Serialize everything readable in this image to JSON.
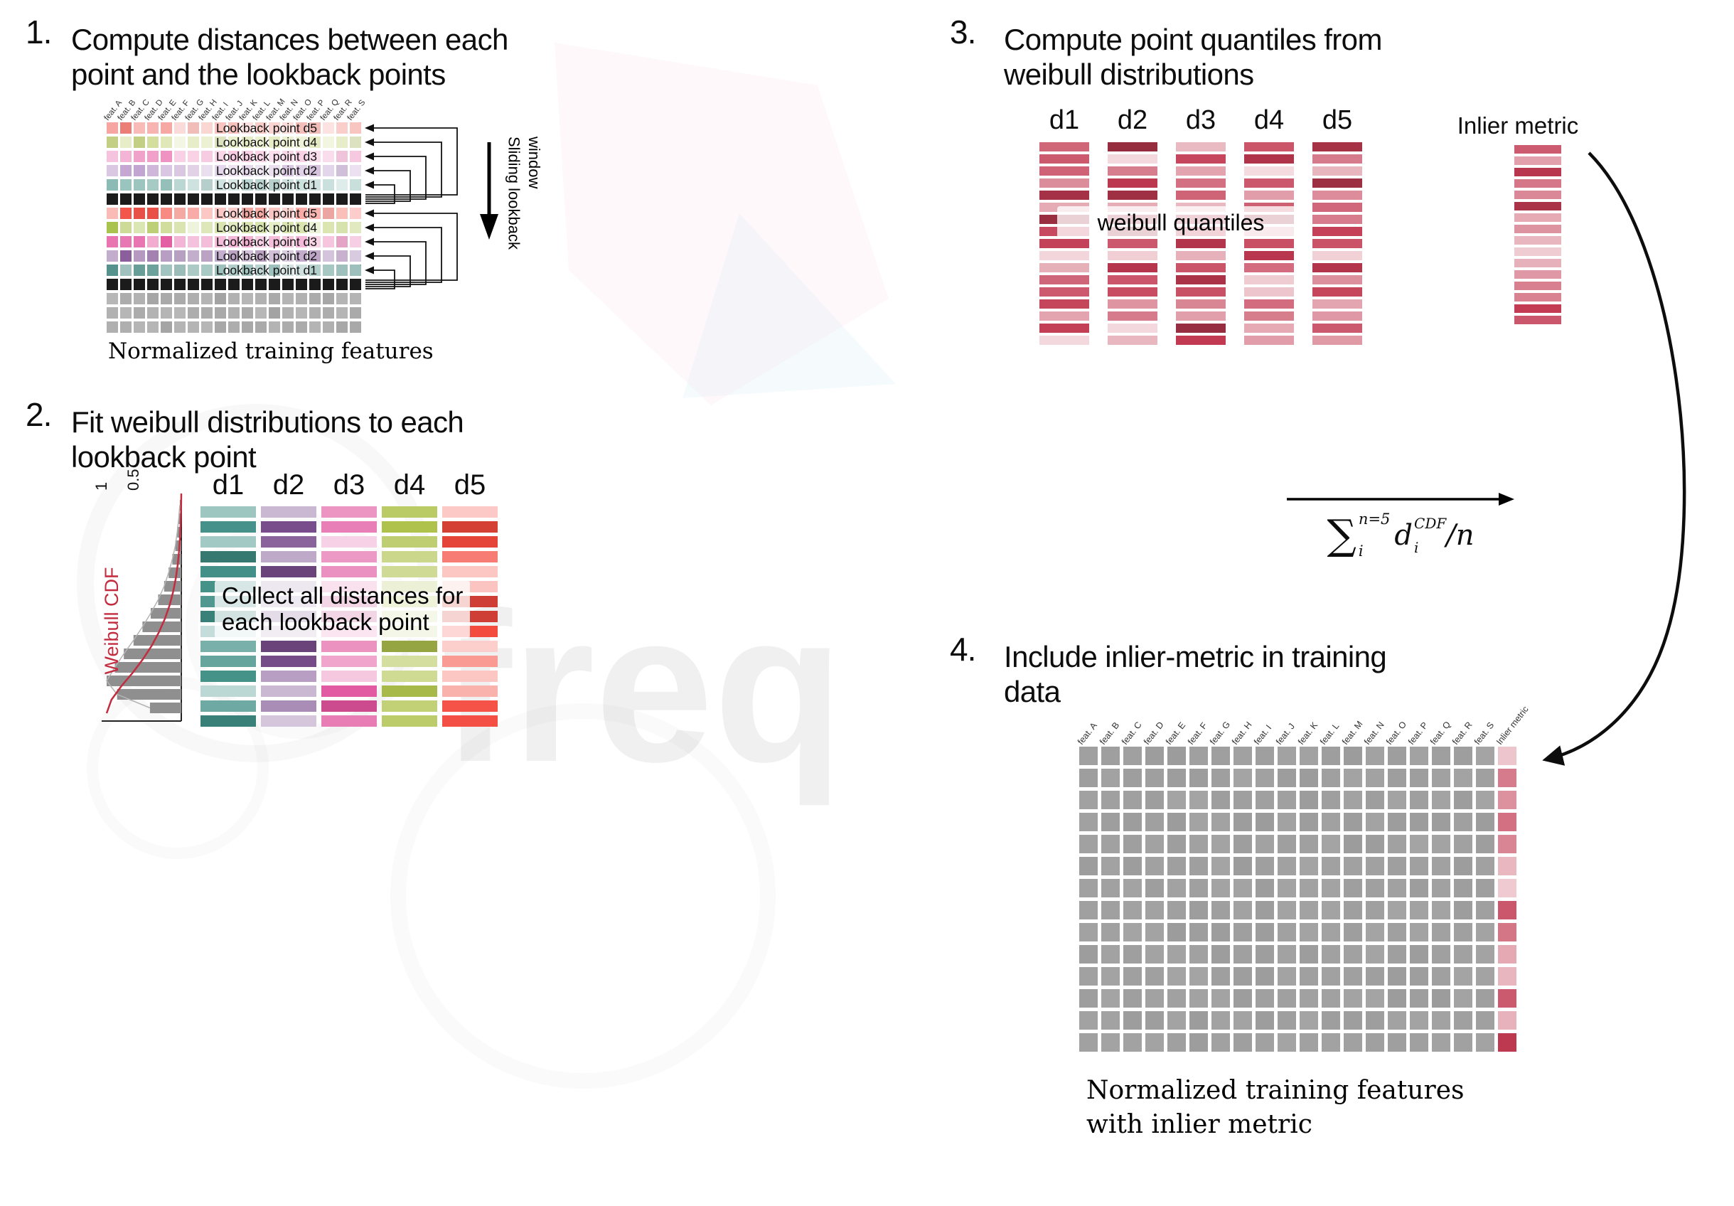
{
  "watermark": {
    "text": "freq"
  },
  "features": [
    "feat. A",
    "feat. B",
    "feat. C",
    "feat. D",
    "feat. E",
    "feat. F",
    "feat. G",
    "feat. H",
    "feat. I",
    "feat. J",
    "feat. K",
    "feat. L",
    "feat. M",
    "feat. N",
    "feat. O",
    "feat. P",
    "feat. Q",
    "feat. R",
    "feat. S"
  ],
  "panel1": {
    "number": "1.",
    "title_lines": [
      "Compute distances between each",
      "point and the lookback points"
    ],
    "lookback_labels": [
      "Lookback point d5",
      "Lookback point d4",
      "Lookback point d3",
      "Lookback point d2",
      "Lookback point d1"
    ],
    "sliding_label": "Sliding lookback window",
    "caption": "Normalized training features",
    "grid": {
      "columns": 19,
      "data_rows_per_group": 5,
      "groups": 2,
      "separator_rows": 2,
      "trailing_gray_rows": 3
    },
    "colors": {
      "group1": {
        "d5": "#f2837b",
        "d4": "#ccd98b",
        "d3": "#ef93c3",
        "d2": "#b28bc4",
        "d1": "#79b0a8"
      },
      "group2": {
        "d5": "#f3554a",
        "d4": "#a9c24d",
        "d3": "#e2529d",
        "d2": "#7c4b90",
        "d1": "#3c837b"
      },
      "black": "#1b1b1b",
      "gray": "#a3a3a3"
    }
  },
  "panel2": {
    "number": "2.",
    "title_lines": [
      "Fit weibull distributions to each",
      "lookback point"
    ],
    "plot": {
      "ylabel": "Weibull CDF",
      "tick_labels": [
        "1",
        "0.5"
      ],
      "hist": [
        0.02,
        0.035,
        0.055,
        0.08,
        0.12,
        0.17,
        0.23,
        0.31,
        0.41,
        0.52,
        0.64,
        0.77,
        0.89,
        1.0,
        0.86,
        0.42
      ],
      "curve_color": "#c22c3e",
      "bar_color": "#8f8f8f"
    },
    "columns": [
      {
        "label": "d1",
        "color": "#3f8e85"
      },
      {
        "label": "d2",
        "color": "#7c4f90"
      },
      {
        "label": "d3",
        "color": "#e0519c"
      },
      {
        "label": "d4",
        "color": "#afc24c"
      },
      {
        "label": "d5",
        "color": "#f4493d"
      }
    ],
    "bars_per_column": 15,
    "overlay_lines": [
      "Collect all distances for",
      "each lookback point"
    ]
  },
  "panel3": {
    "number": "3.",
    "title_lines": [
      "Compute point quantiles from",
      "weibull distributions"
    ],
    "column_labels": [
      "d1",
      "d2",
      "d3",
      "d4",
      "d5"
    ],
    "bars_per_column": 17,
    "color": "#c23a52",
    "overlay": "weibull quantiles",
    "inlier_label": "Inlier metric",
    "inlier_bars": 16,
    "formula": {
      "sigma": "∑",
      "upper": "n=5",
      "lower": "i",
      "var": "d",
      "var_sub": "i",
      "var_sup": "CDF",
      "tail": "/n"
    }
  },
  "panel4": {
    "number": "4.",
    "title_lines": [
      "Include inlier-metric in training",
      "data"
    ],
    "inlier_label": "Inlier metric",
    "caption_lines": [
      "Normalized training features",
      "with inlier metric"
    ],
    "grid": {
      "columns": 19,
      "rows": 14
    },
    "colors": {
      "gray": "#9c9c9c",
      "inlier": "#c23a52"
    }
  }
}
